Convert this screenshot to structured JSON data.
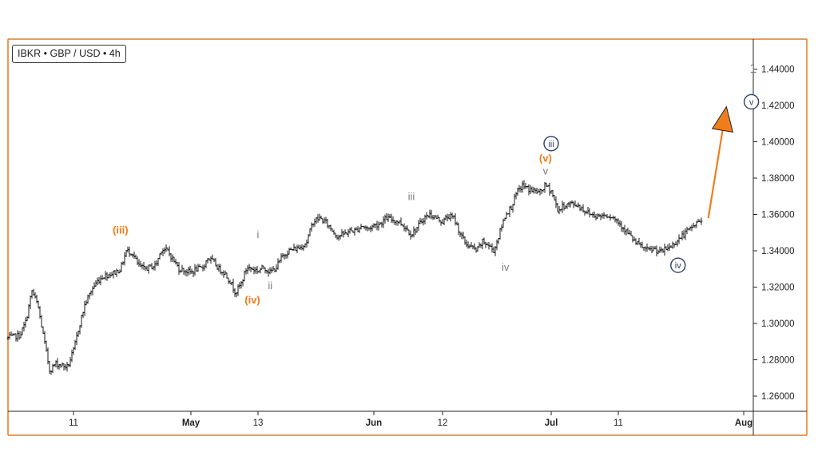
{
  "header": {
    "ticker": "IBKR • GBP / USD • 4h"
  },
  "colors": {
    "frame": "#ea7a1c",
    "price": "#1a1a1a",
    "orange": "#f07d1b",
    "grey": "#7a7a7a",
    "navy": "#2d3f66",
    "arrow": "#f07d1b"
  },
  "chart_data": {
    "type": "line",
    "title": "",
    "xlabel": "",
    "ylabel": "",
    "y_axis_position": "right",
    "ylim": [
      1.25,
      1.455
    ],
    "y_ticks": [
      "1.26000",
      "1.28000",
      "1.30000",
      "1.32000",
      "1.34000",
      "1.36000",
      "1.38000",
      "1.40000",
      "1.42000",
      "1.44000"
    ],
    "x_ticks": [
      {
        "label": "11",
        "date": "2023-04-11",
        "major": false
      },
      {
        "label": "May",
        "date": "2023-05-01",
        "major": true
      },
      {
        "label": "13",
        "date": "2023-05-13",
        "major": false
      },
      {
        "label": "Jun",
        "date": "2023-06-01",
        "major": true
      },
      {
        "label": "12",
        "date": "2023-06-12",
        "major": false
      },
      {
        "label": "Jul",
        "date": "2023-07-01",
        "major": true
      },
      {
        "label": "11",
        "date": "2023-07-11",
        "major": false
      },
      {
        "label": "Aug",
        "date": "2023-08-01",
        "major": true
      }
    ],
    "series": [
      {
        "style": "ohlc-bars",
        "points": [
          [
            "2023-03-31",
            1.292
          ],
          [
            "2023-04-02",
            1.2935
          ],
          [
            "2023-04-03",
            1.301
          ],
          [
            "2023-04-04",
            1.318
          ],
          [
            "2023-04-05",
            1.31
          ],
          [
            "2023-04-06",
            1.292
          ],
          [
            "2023-04-07",
            1.274
          ],
          [
            "2023-04-08",
            1.278
          ],
          [
            "2023-04-10",
            1.276
          ],
          [
            "2023-04-11",
            1.285
          ],
          [
            "2023-04-12",
            1.299
          ],
          [
            "2023-04-13",
            1.311
          ],
          [
            "2023-04-14",
            1.318
          ],
          [
            "2023-04-15",
            1.323
          ],
          [
            "2023-04-16",
            1.326
          ],
          [
            "2023-04-17",
            1.327
          ],
          [
            "2023-04-18",
            1.328
          ],
          [
            "2023-04-19",
            1.33
          ],
          [
            "2023-04-20",
            1.34
          ],
          [
            "2023-04-21",
            1.339
          ],
          [
            "2023-04-22",
            1.332
          ],
          [
            "2023-04-23",
            1.33
          ],
          [
            "2023-04-24",
            1.331
          ],
          [
            "2023-04-25",
            1.332
          ],
          [
            "2023-04-26",
            1.341
          ],
          [
            "2023-04-27",
            1.34
          ],
          [
            "2023-04-28",
            1.335
          ],
          [
            "2023-04-29",
            1.33
          ],
          [
            "2023-04-30",
            1.329
          ],
          [
            "2023-05-01",
            1.328
          ],
          [
            "2023-05-02",
            1.33
          ],
          [
            "2023-05-03",
            1.33
          ],
          [
            "2023-05-04",
            1.336
          ],
          [
            "2023-05-05",
            1.334
          ],
          [
            "2023-05-06",
            1.33
          ],
          [
            "2023-05-07",
            1.328
          ],
          [
            "2023-05-08",
            1.323
          ],
          [
            "2023-05-09",
            1.317
          ],
          [
            "2023-05-10",
            1.322
          ],
          [
            "2023-05-11",
            1.331
          ],
          [
            "2023-05-12",
            1.33
          ],
          [
            "2023-05-13",
            1.329
          ],
          [
            "2023-05-14",
            1.331
          ],
          [
            "2023-05-15",
            1.328
          ],
          [
            "2023-05-16",
            1.331
          ],
          [
            "2023-05-17",
            1.337
          ],
          [
            "2023-05-18",
            1.34
          ],
          [
            "2023-05-19",
            1.341
          ],
          [
            "2023-05-20",
            1.342
          ],
          [
            "2023-05-21",
            1.345
          ],
          [
            "2023-05-22",
            1.356
          ],
          [
            "2023-05-23",
            1.358
          ],
          [
            "2023-05-24",
            1.356
          ],
          [
            "2023-05-25",
            1.352
          ],
          [
            "2023-05-26",
            1.348
          ],
          [
            "2023-05-27",
            1.349
          ],
          [
            "2023-05-28",
            1.351
          ],
          [
            "2023-05-29",
            1.351
          ],
          [
            "2023-05-30",
            1.354
          ],
          [
            "2023-05-31",
            1.352
          ],
          [
            "2023-06-01",
            1.354
          ],
          [
            "2023-06-02",
            1.355
          ],
          [
            "2023-06-03",
            1.358
          ],
          [
            "2023-06-04",
            1.357
          ],
          [
            "2023-06-05",
            1.356
          ],
          [
            "2023-06-06",
            1.353
          ],
          [
            "2023-06-07",
            1.349
          ],
          [
            "2023-06-08",
            1.353
          ],
          [
            "2023-06-09",
            1.358
          ],
          [
            "2023-06-10",
            1.36
          ],
          [
            "2023-06-11",
            1.358
          ],
          [
            "2023-06-12",
            1.356
          ],
          [
            "2023-06-13",
            1.359
          ],
          [
            "2023-06-14",
            1.358
          ],
          [
            "2023-06-15",
            1.35
          ],
          [
            "2023-06-16",
            1.344
          ],
          [
            "2023-06-17",
            1.342
          ],
          [
            "2023-06-18",
            1.34
          ],
          [
            "2023-06-19",
            1.345
          ],
          [
            "2023-06-20",
            1.343
          ],
          [
            "2023-06-21",
            1.34
          ],
          [
            "2023-06-22",
            1.35
          ],
          [
            "2023-06-23",
            1.36
          ],
          [
            "2023-06-24",
            1.364
          ],
          [
            "2023-06-25",
            1.372
          ],
          [
            "2023-06-26",
            1.376
          ],
          [
            "2023-06-27",
            1.374
          ],
          [
            "2023-06-28",
            1.373
          ],
          [
            "2023-06-29",
            1.372
          ],
          [
            "2023-06-30",
            1.376
          ],
          [
            "2023-07-01",
            1.373
          ],
          [
            "2023-07-02",
            1.362
          ],
          [
            "2023-07-03",
            1.365
          ],
          [
            "2023-07-04",
            1.366
          ],
          [
            "2023-07-05",
            1.365
          ],
          [
            "2023-07-06",
            1.362
          ],
          [
            "2023-07-07",
            1.36
          ],
          [
            "2023-07-08",
            1.359
          ],
          [
            "2023-07-09",
            1.36
          ],
          [
            "2023-07-10",
            1.359
          ],
          [
            "2023-07-11",
            1.356
          ],
          [
            "2023-07-12",
            1.352
          ],
          [
            "2023-07-13",
            1.348
          ],
          [
            "2023-07-14",
            1.344
          ],
          [
            "2023-07-15",
            1.342
          ],
          [
            "2023-07-16",
            1.34
          ],
          [
            "2023-07-17",
            1.341
          ],
          [
            "2023-07-18",
            1.339
          ],
          [
            "2023-07-19",
            1.341
          ],
          [
            "2023-07-20",
            1.343
          ],
          [
            "2023-07-21",
            1.346
          ],
          [
            "2023-07-22",
            1.349
          ],
          [
            "2023-07-23",
            1.352
          ],
          [
            "2023-07-24",
            1.355
          ],
          [
            "2023-07-25",
            1.357
          ]
        ]
      }
    ],
    "projection_arrow": {
      "from": [
        "2023-07-25",
        1.358
      ],
      "to": [
        "2023-07-26",
        1.415
      ]
    },
    "annotations": [
      {
        "text": "(iii)",
        "date": "2023-04-19",
        "y": 1.3495,
        "color": "orange",
        "style": "plain"
      },
      {
        "text": "i",
        "date": "2023-05-13",
        "y": 1.347,
        "color": "grey",
        "style": "plain"
      },
      {
        "text": "ii",
        "date": "2023-05-15",
        "y": 1.319,
        "color": "grey",
        "style": "plain"
      },
      {
        "text": "(iv)",
        "date": "2023-05-12",
        "y": 1.311,
        "color": "orange",
        "style": "plain"
      },
      {
        "text": "iii",
        "date": "2023-06-07",
        "y": 1.368,
        "color": "grey",
        "style": "plain"
      },
      {
        "text": "iv",
        "date": "2023-06-23",
        "y": 1.329,
        "color": "grey",
        "style": "plain"
      },
      {
        "text": "v",
        "date": "2023-06-30",
        "y": 1.382,
        "color": "grey",
        "style": "plain"
      },
      {
        "text": "(v)",
        "date": "2023-06-30",
        "y": 1.389,
        "color": "orange",
        "style": "plain"
      },
      {
        "text": "iii",
        "date": "2023-07-01",
        "y": 1.399,
        "color": "navy",
        "style": "circled"
      },
      {
        "text": "iv",
        "date": "2023-07-21",
        "y": 1.332,
        "color": "navy",
        "style": "circled"
      },
      {
        "text": "v",
        "date": "2023-08-05",
        "y": 1.422,
        "color": "navy",
        "style": "circled"
      },
      {
        "text": "1",
        "date": "2023-08-06",
        "y": 1.438,
        "color": "grey",
        "style": "plain-large"
      }
    ]
  }
}
